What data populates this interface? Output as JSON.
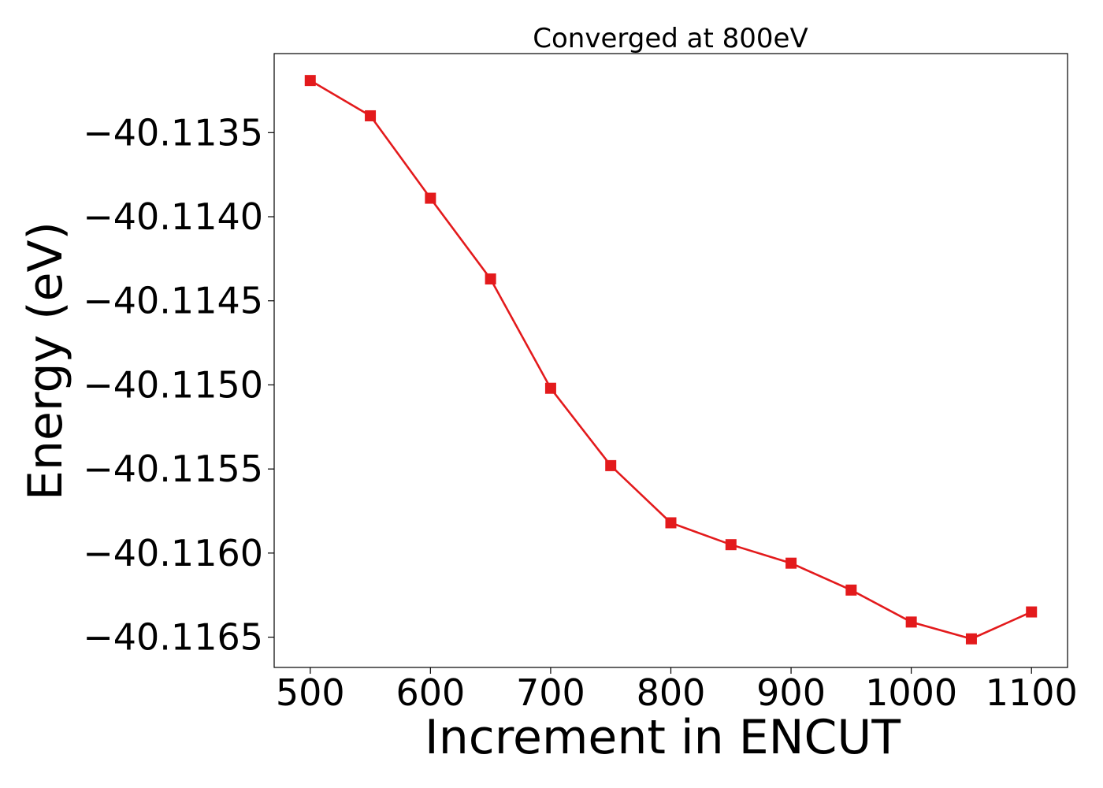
{
  "chart_data": {
    "type": "line",
    "title": "Converged at 800eV",
    "xlabel": "Increment in ENCUT",
    "ylabel": "Energy (eV)",
    "xlim": [
      470,
      1130
    ],
    "ylim": [
      -40.11668,
      -40.11303
    ],
    "x_ticks": [
      500,
      600,
      700,
      800,
      900,
      1000,
      1100
    ],
    "y_ticks": [
      -40.1135,
      -40.114,
      -40.1145,
      -40.115,
      -40.1155,
      -40.116,
      -40.1165
    ],
    "y_tick_labels": [
      "−40.1135",
      "−40.1140",
      "−40.1145",
      "−40.1150",
      "−40.1155",
      "−40.1160",
      "−40.1165"
    ],
    "grid": false,
    "series": [
      {
        "color": "#e31a1c",
        "marker": "square",
        "x": [
          500,
          550,
          600,
          650,
          700,
          750,
          800,
          850,
          900,
          950,
          1000,
          1050,
          1100
        ],
        "y": [
          -40.11319,
          -40.1134,
          -40.11389,
          -40.11437,
          -40.11502,
          -40.11548,
          -40.11582,
          -40.11595,
          -40.11606,
          -40.11622,
          -40.11641,
          -40.11651,
          -40.11635
        ]
      }
    ]
  }
}
